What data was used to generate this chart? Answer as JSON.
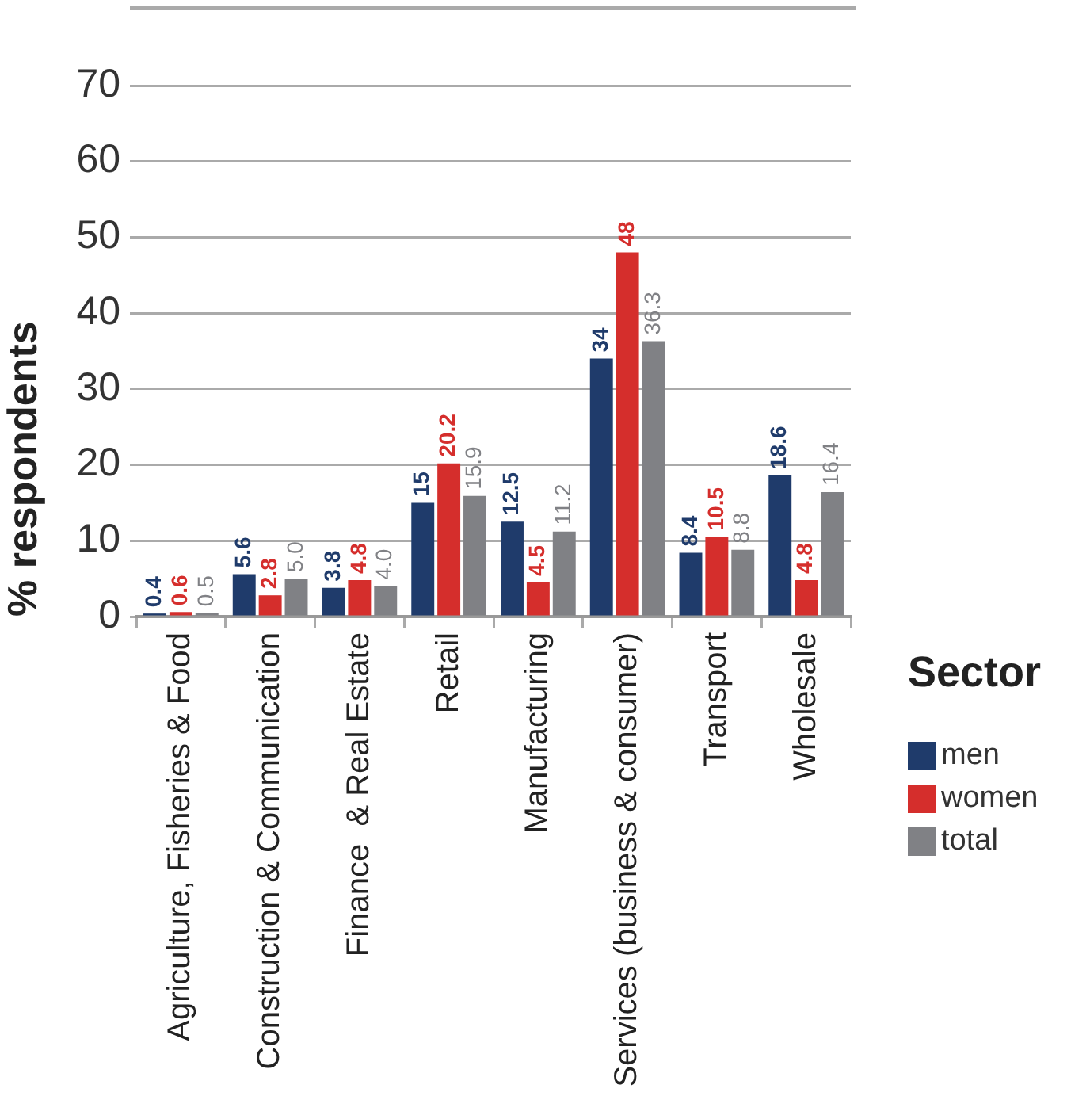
{
  "chart_data": {
    "type": "bar",
    "ylabel": "% respondents",
    "legend_title": "Sector",
    "categories": [
      "Agriculture, Fisheries & Food",
      "Construction & Communication",
      "Finance  & Real Estate",
      "Retail",
      "Manufacturing",
      "Services (business & consumer)",
      "Transport",
      "Wholesale"
    ],
    "series": [
      {
        "name": "men",
        "color": "#1f3b6b",
        "values": [
          0.4,
          5.6,
          3.8,
          15,
          12.5,
          34,
          8.4,
          18.6
        ],
        "value_labels": [
          "0.4",
          "5.6",
          "3.8",
          "15",
          "12.5",
          "34",
          "8.4",
          "18.6"
        ]
      },
      {
        "name": "women",
        "color": "#d52e2c",
        "values": [
          0.6,
          2.8,
          4.8,
          20.2,
          4.5,
          48,
          10.5,
          4.8
        ],
        "value_labels": [
          "0.6",
          "2.8",
          "4.8",
          "20.2",
          "4.5",
          "48",
          "10.5",
          "4.8"
        ]
      },
      {
        "name": "total",
        "color": "#808185",
        "values": [
          0.5,
          5.0,
          4.0,
          15.9,
          11.2,
          36.3,
          8.8,
          16.4
        ],
        "value_labels": [
          "0.5",
          "5.0",
          "4.0",
          "15.9",
          "11.2",
          "36.3",
          "8.8",
          "16.4"
        ]
      }
    ],
    "ylim": [
      0,
      70
    ],
    "yticks": [
      0,
      10,
      20,
      30,
      40,
      50,
      60,
      70
    ],
    "grid": "y",
    "legend": "right"
  }
}
